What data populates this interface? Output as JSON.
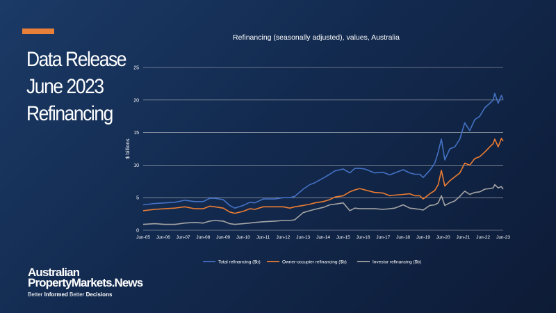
{
  "header": {
    "title_lines": [
      "Data Release",
      "June 2023",
      "Refinancing"
    ]
  },
  "brand": {
    "line1": "Australian",
    "line2": "PropertyMarkets.News",
    "tagline_a": "Better ",
    "tagline_b": "Informed",
    "tagline_c": " Better ",
    "tagline_d": "Decisions"
  },
  "colors": {
    "accent": "#e8803a",
    "series_total": "#4472c4",
    "series_owner": "#ed7d31",
    "series_investor": "#a5a5a5",
    "grid": "#d9d9d9"
  },
  "chart_data": {
    "type": "line",
    "title": "Refinancing (seasonally adjusted), values, Australia",
    "ylabel": "$ billions",
    "xlabel": "",
    "ylim": [
      0,
      25
    ],
    "yticks": [
      0,
      5,
      10,
      15,
      20,
      25
    ],
    "xlim": [
      2005.42,
      2023.42
    ],
    "grid": "horizontal",
    "legend_position": "bottom",
    "x_tick_labels": [
      "Jun-05",
      "Jun-06",
      "Jun-07",
      "Jun-08",
      "Jun-09",
      "Jun-10",
      "Jun-11",
      "Jun-12",
      "Jun-13",
      "Jun-14",
      "Jun-15",
      "Jun-16",
      "Jun-17",
      "Jun-18",
      "Jun-19",
      "Jun-20",
      "Jun-21",
      "Jun-22",
      "Jun-23"
    ],
    "x": [
      2005.42,
      2006.0,
      2006.5,
      2007.0,
      2007.5,
      2008.0,
      2008.42,
      2008.75,
      2009.0,
      2009.42,
      2009.75,
      2010.0,
      2010.42,
      2010.75,
      2011.0,
      2011.42,
      2012.0,
      2012.42,
      2012.75,
      2013.0,
      2013.42,
      2013.75,
      2014.0,
      2014.42,
      2014.75,
      2015.0,
      2015.42,
      2015.75,
      2016.0,
      2016.25,
      2016.5,
      2017.0,
      2017.42,
      2017.75,
      2018.0,
      2018.42,
      2018.75,
      2019.0,
      2019.25,
      2019.42,
      2019.75,
      2020.0,
      2020.17,
      2020.33,
      2020.5,
      2020.75,
      2021.0,
      2021.25,
      2021.5,
      2021.75,
      2022.0,
      2022.25,
      2022.5,
      2022.75,
      2022.92,
      2023.0,
      2023.17,
      2023.33,
      2023.42
    ],
    "series": [
      {
        "name": "Total refinancing ($b)",
        "values": [
          3.9,
          4.1,
          4.2,
          4.3,
          4.6,
          4.4,
          4.4,
          4.9,
          4.9,
          4.7,
          3.8,
          3.4,
          3.8,
          4.3,
          4.2,
          4.8,
          4.8,
          5.0,
          5.0,
          5.2,
          6.3,
          7.0,
          7.3,
          8.0,
          8.6,
          9.1,
          9.4,
          8.8,
          9.5,
          9.5,
          9.4,
          8.8,
          8.9,
          8.5,
          8.8,
          9.3,
          8.8,
          8.6,
          8.6,
          8.1,
          9.2,
          10.3,
          12.0,
          14.0,
          10.8,
          12.5,
          12.8,
          14.0,
          16.5,
          15.3,
          17.0,
          17.5,
          18.8,
          19.5,
          20.0,
          21.0,
          19.5,
          20.7,
          20.1
        ]
      },
      {
        "name": "Owner-occupier refinancing ($b)",
        "values": [
          3.0,
          3.2,
          3.3,
          3.4,
          3.6,
          3.3,
          3.3,
          3.7,
          3.6,
          3.4,
          2.8,
          2.6,
          2.9,
          3.3,
          3.2,
          3.6,
          3.6,
          3.6,
          3.4,
          3.6,
          3.8,
          4.0,
          4.2,
          4.4,
          4.7,
          5.1,
          5.3,
          5.9,
          6.2,
          6.4,
          6.2,
          5.8,
          5.7,
          5.3,
          5.4,
          5.5,
          5.6,
          5.3,
          5.3,
          4.8,
          5.6,
          6.1,
          7.0,
          9.2,
          6.8,
          7.6,
          8.2,
          8.8,
          10.3,
          10.0,
          11.0,
          11.3,
          12.0,
          12.8,
          13.3,
          14.0,
          12.8,
          14.1,
          13.7
        ]
      },
      {
        "name": "Investor refinancing ($b)",
        "values": [
          0.9,
          1.0,
          0.9,
          0.9,
          1.1,
          1.2,
          1.1,
          1.4,
          1.5,
          1.4,
          1.0,
          0.9,
          1.0,
          1.1,
          1.2,
          1.3,
          1.4,
          1.5,
          1.5,
          1.6,
          2.7,
          3.0,
          3.2,
          3.5,
          3.9,
          4.0,
          4.2,
          3.0,
          3.4,
          3.3,
          3.3,
          3.3,
          3.2,
          3.3,
          3.4,
          3.9,
          3.4,
          3.3,
          3.2,
          3.1,
          3.8,
          3.9,
          4.2,
          5.3,
          3.8,
          4.2,
          4.5,
          5.2,
          6.0,
          5.5,
          5.8,
          5.9,
          6.3,
          6.4,
          6.5,
          7.0,
          6.5,
          6.7,
          6.3
        ]
      }
    ]
  }
}
